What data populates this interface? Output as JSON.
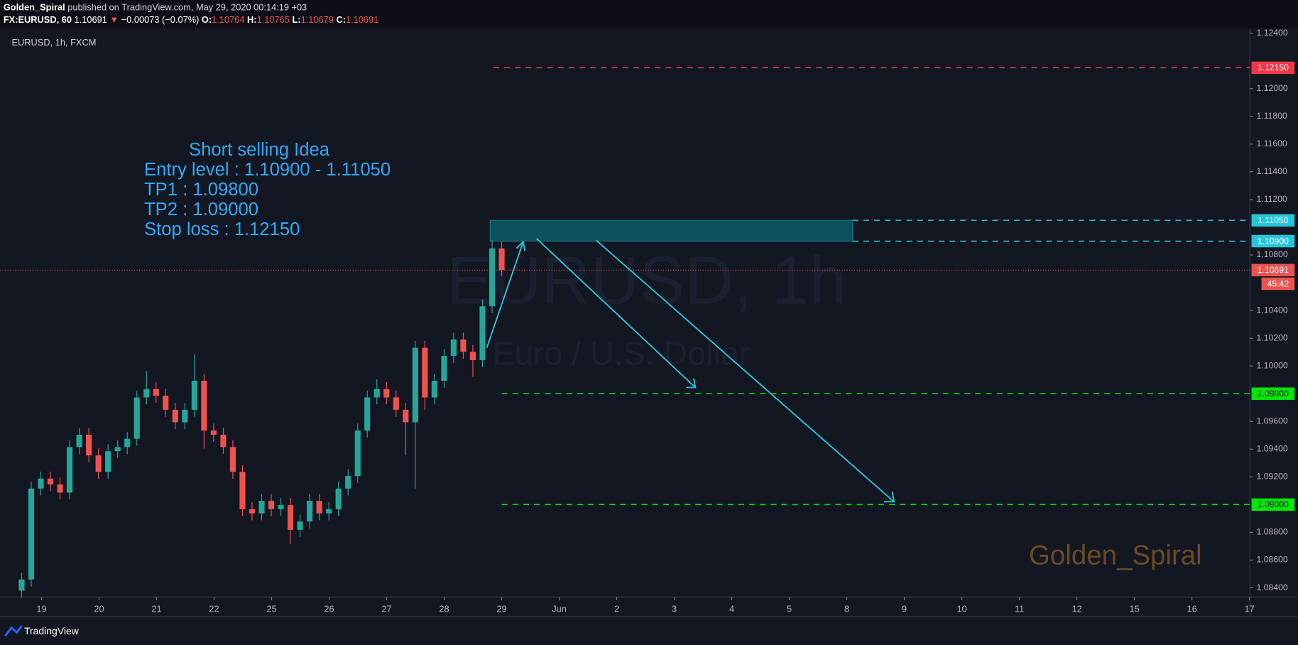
{
  "header": {
    "publisher": "Golden_Spiral",
    "published_text": "published on TradingView.com, May 29, 2020 00:14:19 +03",
    "symbol": "FX:EURUSD, 60",
    "last": "1.10691",
    "change": "−0.00073 (−0.07%)",
    "ohlc": [
      {
        "key": "O:",
        "value": "1.10764"
      },
      {
        "key": "H:",
        "value": "1.10765"
      },
      {
        "key": "L:",
        "value": "1.10679"
      },
      {
        "key": "C:",
        "value": "1.10691"
      }
    ]
  },
  "footer": {
    "brand": "TradingView"
  },
  "chart_data": {
    "type": "candlestick",
    "title": "EURUSD, 1h, FXCM",
    "watermark": "EURUSD, 1h",
    "subtitle": "Euro / U.S. Dollar",
    "signature": "Golden_Spiral",
    "annotation_lines": [
      "Short selling Idea",
      "Entry level : 1.10900 - 1.11050",
      "TP1 : 1.09800",
      "TP2 : 1.09000",
      "Stop loss : 1.12150"
    ],
    "x_labels": [
      "19",
      "20",
      "21",
      "22",
      "25",
      "26",
      "27",
      "28",
      "29",
      "Jun",
      "2",
      "3",
      "4",
      "5",
      "8",
      "9",
      "10",
      "11",
      "12",
      "15",
      "16",
      "17"
    ],
    "up_color": "#26a69a",
    "down_color": "#ef5350",
    "candles": {
      "open": [
        1.0838,
        1.0846,
        1.09116,
        1.09188,
        1.09146,
        1.09087,
        1.09415,
        1.09504,
        1.09355,
        1.09236,
        1.09385,
        1.09415,
        1.09475,
        1.09773,
        1.09833,
        1.09785,
        1.09684,
        1.09594,
        1.09684,
        1.09893,
        1.09534,
        1.09504,
        1.09415,
        1.09236,
        1.08967,
        1.08937,
        1.09027,
        1.08967,
        1.08997,
        1.08818,
        1.08878,
        1.09027,
        1.08937,
        1.08967,
        1.09116,
        1.09206,
        1.09534,
        1.09773,
        1.09833,
        1.09773,
        1.09684,
        1.09594,
        1.10131,
        1.09773,
        1.09893,
        1.10072,
        1.10191,
        1.10102,
        1.10042,
        1.1043,
        1.10848
      ],
      "high": [
        1.0851,
        1.09166,
        1.09238,
        1.09238,
        1.09196,
        1.09465,
        1.09554,
        1.09554,
        1.09405,
        1.09435,
        1.09465,
        1.09525,
        1.09823,
        1.09963,
        1.09883,
        1.09835,
        1.09734,
        1.09734,
        1.10084,
        1.09943,
        1.09584,
        1.09554,
        1.09465,
        1.09286,
        1.09017,
        1.09077,
        1.09077,
        1.09047,
        1.09047,
        1.08928,
        1.09077,
        1.09077,
        1.09017,
        1.09166,
        1.09256,
        1.09584,
        1.09823,
        1.09904,
        1.09883,
        1.09823,
        1.09734,
        1.10181,
        1.10181,
        1.09943,
        1.10122,
        1.10241,
        1.10241,
        1.10152,
        1.1048,
        1.10908,
        1.10898
      ],
      "low": [
        1.0833,
        1.0841,
        1.09066,
        1.09096,
        1.09037,
        1.09037,
        1.09365,
        1.09305,
        1.09186,
        1.09186,
        1.09335,
        1.09365,
        1.09425,
        1.09723,
        1.09735,
        1.09634,
        1.09544,
        1.09544,
        1.09634,
        1.09404,
        1.09454,
        1.09365,
        1.09186,
        1.08917,
        1.08887,
        1.08887,
        1.08917,
        1.08917,
        1.08716,
        1.08768,
        1.08828,
        1.08887,
        1.08887,
        1.08917,
        1.09066,
        1.09156,
        1.09484,
        1.09723,
        1.09723,
        1.09634,
        1.09355,
        1.09116,
        1.09684,
        1.09723,
        1.09843,
        1.10022,
        1.10052,
        1.09922,
        1.09992,
        1.1038,
        1.1065
      ],
      "close": [
        1.0846,
        1.09116,
        1.09188,
        1.09146,
        1.09087,
        1.09415,
        1.09504,
        1.09355,
        1.09236,
        1.09385,
        1.09415,
        1.09475,
        1.09773,
        1.09833,
        1.09785,
        1.09684,
        1.09594,
        1.09684,
        1.09893,
        1.09534,
        1.09504,
        1.09415,
        1.09236,
        1.08967,
        1.08937,
        1.09027,
        1.08967,
        1.08997,
        1.08818,
        1.08878,
        1.09027,
        1.08937,
        1.08967,
        1.09116,
        1.09206,
        1.09534,
        1.09773,
        1.09833,
        1.09773,
        1.09684,
        1.09594,
        1.10131,
        1.09773,
        1.09893,
        1.10072,
        1.10191,
        1.10102,
        1.10042,
        1.1043,
        1.10848,
        1.10691
      ]
    },
    "ylim": [
      1.0834,
      1.1242
    ],
    "yticks": [
      {
        "value": 1.124,
        "label": "1.12400"
      },
      {
        "value": 1.12,
        "label": "1.12000"
      },
      {
        "value": 1.118,
        "label": "1.11800"
      },
      {
        "value": 1.116,
        "label": "1.11600"
      },
      {
        "value": 1.114,
        "label": "1.11400"
      },
      {
        "value": 1.112,
        "label": "1.11200"
      },
      {
        "value": 1.108,
        "label": "1.10800"
      },
      {
        "value": 1.104,
        "label": "1.10400"
      },
      {
        "value": 1.102,
        "label": "1.10200"
      },
      {
        "value": 1.1,
        "label": "1.10000"
      },
      {
        "value": 1.096,
        "label": "1.09600"
      },
      {
        "value": 1.094,
        "label": "1.09400"
      },
      {
        "value": 1.092,
        "label": "1.09200"
      },
      {
        "value": 1.088,
        "label": "1.08800"
      },
      {
        "value": 1.086,
        "label": "1.08600"
      },
      {
        "value": 1.084,
        "label": "1.08400"
      }
    ],
    "levels": [
      {
        "value": 1.1215,
        "label": "1.12150",
        "color": "#f23645"
      },
      {
        "value": 1.1105,
        "label": "1.11050",
        "color": "#26c6da"
      },
      {
        "value": 1.109,
        "label": "1.10900",
        "color": "#26c6da"
      },
      {
        "value": 1.10691,
        "label": "1.10691",
        "countdown": "45:42",
        "color": "#ef5350"
      },
      {
        "value": 1.098,
        "label": "1.09800",
        "color": "#00e600"
      },
      {
        "value": 1.09,
        "label": "1.09000",
        "color": "#00e600"
      }
    ]
  }
}
